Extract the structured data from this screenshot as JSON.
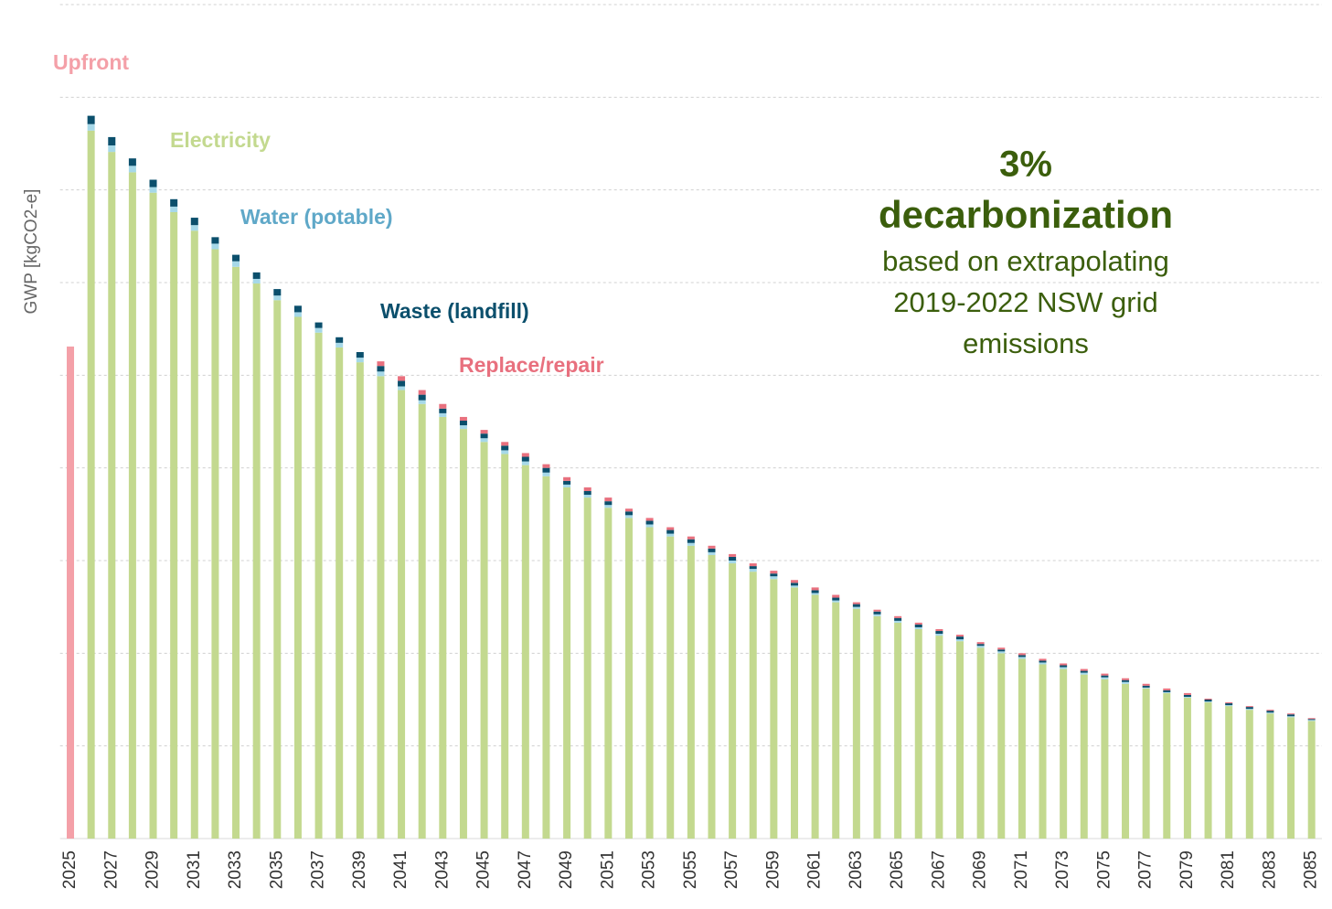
{
  "chart_data": {
    "type": "stacked_bar",
    "y_label": "GWP [kgCO2-e]",
    "annotation": [
      "3%",
      "decarbonization",
      "based on extrapolating",
      "2019-2022 NSW grid",
      "emissions"
    ],
    "categories": [
      "2025",
      null,
      "2027",
      null,
      "2029",
      null,
      "2031",
      null,
      "2033",
      null,
      "2035",
      null,
      "2037",
      null,
      "2039",
      null,
      "2041",
      null,
      "2043",
      null,
      "2045",
      null,
      "2047",
      null,
      "2049",
      null,
      "2051",
      null,
      "2053",
      null,
      "2055",
      null,
      "2057",
      null,
      "2059",
      null,
      "2061",
      null,
      "2063",
      null,
      "2065",
      null,
      "2067",
      null,
      "2069",
      null,
      "2071",
      null,
      "2073",
      null,
      "2075",
      null,
      "2077",
      null,
      "2079",
      null,
      "2081",
      null,
      "2083",
      null,
      "2085"
    ],
    "series": [
      {
        "name": "Upfront",
        "color": "#f4a0a8",
        "label_color": "#f4a0a8",
        "values": [
          5.31,
          0,
          0,
          0,
          0,
          0,
          0,
          0,
          0,
          0,
          0,
          0,
          0,
          0,
          0,
          0,
          0,
          0,
          0,
          0,
          0,
          0,
          0,
          0,
          0,
          0,
          0,
          0,
          0,
          0,
          0,
          0,
          0,
          0,
          0,
          0,
          0,
          0,
          0,
          0,
          0,
          0,
          0,
          0,
          0,
          0,
          0,
          0,
          0,
          0,
          0,
          0,
          0,
          0,
          0,
          0,
          0,
          0,
          0,
          0,
          0
        ]
      },
      {
        "name": "Electricity",
        "color": "#c3d98f",
        "label_color": "#c3d98f",
        "values": [
          0,
          7.64,
          7.41,
          7.19,
          6.97,
          6.76,
          6.56,
          6.36,
          6.17,
          5.99,
          5.81,
          5.63,
          5.46,
          5.3,
          5.14,
          4.99,
          4.84,
          4.69,
          4.55,
          4.42,
          4.28,
          4.15,
          4.03,
          3.91,
          3.79,
          3.68,
          3.57,
          3.46,
          3.36,
          3.26,
          3.16,
          3.06,
          2.97,
          2.88,
          2.8,
          2.71,
          2.63,
          2.55,
          2.48,
          2.4,
          2.33,
          2.26,
          2.19,
          2.13,
          2.06,
          2.0,
          1.94,
          1.88,
          1.83,
          1.77,
          1.72,
          1.67,
          1.62,
          1.57,
          1.52,
          1.47,
          1.43,
          1.39,
          1.35,
          1.31,
          1.27
        ]
      },
      {
        "name": "Water (potable)",
        "color": "#a6d8e8",
        "label_color": "#5fa8c8",
        "values": [
          0,
          0.07,
          0.07,
          0.07,
          0.06,
          0.06,
          0.06,
          0.06,
          0.06,
          0.05,
          0.05,
          0.05,
          0.05,
          0.05,
          0.05,
          0.05,
          0.04,
          0.04,
          0.04,
          0.04,
          0.04,
          0.04,
          0.04,
          0.04,
          0.03,
          0.03,
          0.03,
          0.03,
          0.03,
          0.03,
          0.03,
          0.03,
          0.03,
          0.03,
          0.03,
          0.02,
          0.02,
          0.02,
          0.02,
          0.02,
          0.02,
          0.02,
          0.02,
          0.02,
          0.02,
          0.02,
          0.02,
          0.02,
          0.02,
          0.02,
          0.02,
          0.02,
          0.01,
          0.01,
          0.01,
          0.01,
          0.01,
          0.01,
          0.01,
          0.01,
          0.01
        ]
      },
      {
        "name": "Waste (landfill)",
        "color": "#0b4f6c",
        "label_color": "#0b4f6c",
        "values": [
          0,
          0.09,
          0.09,
          0.08,
          0.08,
          0.08,
          0.08,
          0.07,
          0.07,
          0.07,
          0.07,
          0.07,
          0.06,
          0.06,
          0.06,
          0.06,
          0.06,
          0.06,
          0.05,
          0.05,
          0.05,
          0.05,
          0.05,
          0.05,
          0.04,
          0.04,
          0.04,
          0.04,
          0.04,
          0.04,
          0.04,
          0.04,
          0.04,
          0.03,
          0.03,
          0.03,
          0.03,
          0.03,
          0.03,
          0.03,
          0.03,
          0.03,
          0.03,
          0.03,
          0.02,
          0.02,
          0.02,
          0.02,
          0.02,
          0.02,
          0.02,
          0.02,
          0.02,
          0.02,
          0.02,
          0.02,
          0.02,
          0.02,
          0.02,
          0.02,
          0.01
        ]
      },
      {
        "name": "Replace/repair",
        "color": "#e8707e",
        "label_color": "#e8707e",
        "values": [
          0,
          0,
          0,
          0,
          0,
          0,
          0,
          0,
          0,
          0,
          0,
          0,
          0,
          0,
          0,
          0.05,
          0.05,
          0.05,
          0.05,
          0.04,
          0.04,
          0.04,
          0.04,
          0.04,
          0.04,
          0.04,
          0.04,
          0.03,
          0.03,
          0.03,
          0.03,
          0.03,
          0.03,
          0.03,
          0.03,
          0.03,
          0.03,
          0.03,
          0.02,
          0.02,
          0.02,
          0.02,
          0.02,
          0.02,
          0.02,
          0.02,
          0.02,
          0.02,
          0.02,
          0.02,
          0.02,
          0.02,
          0.02,
          0.02,
          0.02,
          0.01,
          0.01,
          0.01,
          0.01,
          0.01,
          0.01
        ]
      }
    ],
    "ylim": [
      0,
      9
    ],
    "yticks": [
      0,
      1,
      2,
      3,
      4,
      5,
      6,
      7,
      8,
      9
    ],
    "grid": true
  }
}
